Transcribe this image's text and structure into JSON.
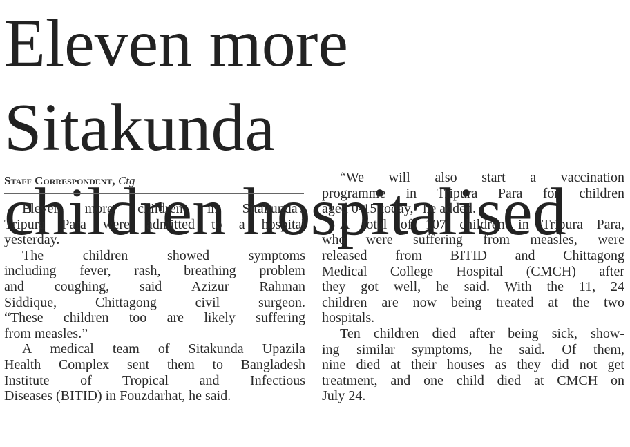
{
  "headline": [
    "Eleven more Sitakunda",
    "children hospitalised"
  ],
  "byline": {
    "author": "Staff Correspondent,",
    "location": "Ctg"
  },
  "left_column": [
    [
      "Eleven more children in Sitakunda's",
      "Tripura Para were admitted to a hospital",
      "yesterday."
    ],
    [
      "The children showed symptoms",
      "including fever, rash, breathing problem",
      "and coughing, said Azizur Rahman",
      "Siddique, Chittagong civil surgeon.",
      "“These children too are likely suffering",
      "from measles.”"
    ],
    [
      "A medical team of Sitakunda Upazila",
      "Health Complex sent them to Bangladesh",
      "Institute of Tropical and Infectious",
      "Diseases (BITID) in Fouzdarhat, he said."
    ]
  ],
  "right_column": [
    [
      "“We will also start a vaccination",
      "programme in Tripura Para for children",
      "aged 0-15 today,” he added."
    ],
    [
      "A total of 107 children in Tripura Para,",
      "who were suffering from measles, were",
      "released from BITID and Chittagong",
      "Medical College Hospital (CMCH) after",
      "they got well, he said. With the 11, 24",
      "children are now being treated at the two",
      "hospitals."
    ],
    [
      "Ten children died after being sick, show-",
      "ing similar symptoms, he said. Of them,",
      "nine died at their houses as they did not get",
      "treatment, and one child died at CMCH on",
      "July 24."
    ]
  ]
}
